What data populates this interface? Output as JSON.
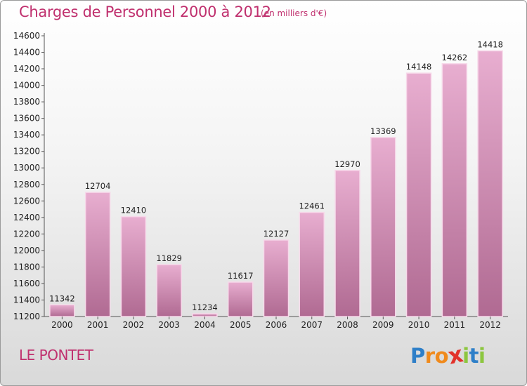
{
  "header": {
    "title": "Charges de Personnel 2000 à 2012",
    "subtitle": "(en milliers d'€)"
  },
  "footer": {
    "city": "LE PONTET",
    "logo": {
      "letters": [
        "P",
        "r",
        "o",
        "x",
        "i",
        "t",
        "i"
      ],
      "colors": [
        "#2e7fc8",
        "#f08a1c",
        "#f08a1c",
        "#e2312a",
        "#8cc63f",
        "#2e7fc8",
        "#8cc63f"
      ]
    }
  },
  "colors": {
    "bar_top": "#e8aed0",
    "bar_bottom": "#b06a92",
    "bar_edge": "#f7d9ea",
    "text": "#222222",
    "title": "#c0306e"
  },
  "chart_data": {
    "type": "bar",
    "categories": [
      "2000",
      "2001",
      "2002",
      "2003",
      "2004",
      "2005",
      "2006",
      "2007",
      "2008",
      "2009",
      "2010",
      "2011",
      "2012"
    ],
    "values": [
      11342,
      12704,
      12410,
      11829,
      11234,
      11617,
      12127,
      12461,
      12970,
      13369,
      14148,
      14262,
      14418
    ],
    "data_labels": [
      "11342",
      "12704",
      "12410",
      "11829",
      "11234",
      "11617",
      "12127",
      "12461",
      "12970",
      "13369",
      "14148",
      "14262",
      "14418"
    ],
    "y_ticks": [
      "11200",
      "11400",
      "11600",
      "11800",
      "12000",
      "12200",
      "12400",
      "12600",
      "12800",
      "13000",
      "13200",
      "13400",
      "13600",
      "13800",
      "14000",
      "14200",
      "14400",
      "14600"
    ],
    "ylim": [
      11200,
      14600
    ],
    "grid": false,
    "legend": "none"
  }
}
